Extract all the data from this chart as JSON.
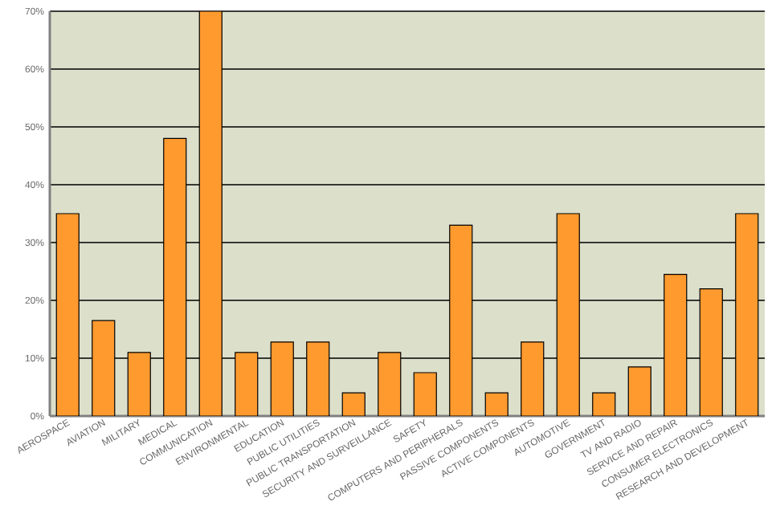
{
  "chart_data": {
    "type": "bar",
    "categories": [
      "AEROSPACE",
      "AVIATION",
      "MILITARY",
      "MEDICAL",
      "COMMUNICATION",
      "ENVIRONMENTAL",
      "EDUCATION",
      "PUBLIC UTILITIES",
      "PUBLIC TRANSPORTATION",
      "SECURITY AND SURVEILLANCE",
      "SAFETY",
      "COMPUTERS AND PERIPHERALS",
      "PASSIVE COMPONENTS",
      "ACTIVE COMPONENTS",
      "AUTOMOTIVE",
      "GOVERNMENT",
      "TV AND RADIO",
      "SERVICE AND REPAIR",
      "CONSUMER ELECTRONICS",
      "RESEARCH AND DEVELOPMENT"
    ],
    "values": [
      35,
      16.5,
      11,
      48,
      70,
      11,
      12.8,
      12.8,
      4,
      11,
      7.5,
      33,
      4,
      12.8,
      35,
      4,
      8.5,
      24.5,
      22,
      35
    ],
    "color": "#ff9a2e",
    "ylim": [
      0,
      70
    ],
    "yticks": [
      {
        "value": 0,
        "label": "0%"
      },
      {
        "value": 10,
        "label": "10%"
      },
      {
        "value": 20,
        "label": "20%"
      },
      {
        "value": 30,
        "label": "30%"
      },
      {
        "value": 40,
        "label": "40%"
      },
      {
        "value": 50,
        "label": "50%"
      },
      {
        "value": 60,
        "label": "60%"
      },
      {
        "value": 70,
        "label": "70%"
      }
    ],
    "grid": "y"
  }
}
